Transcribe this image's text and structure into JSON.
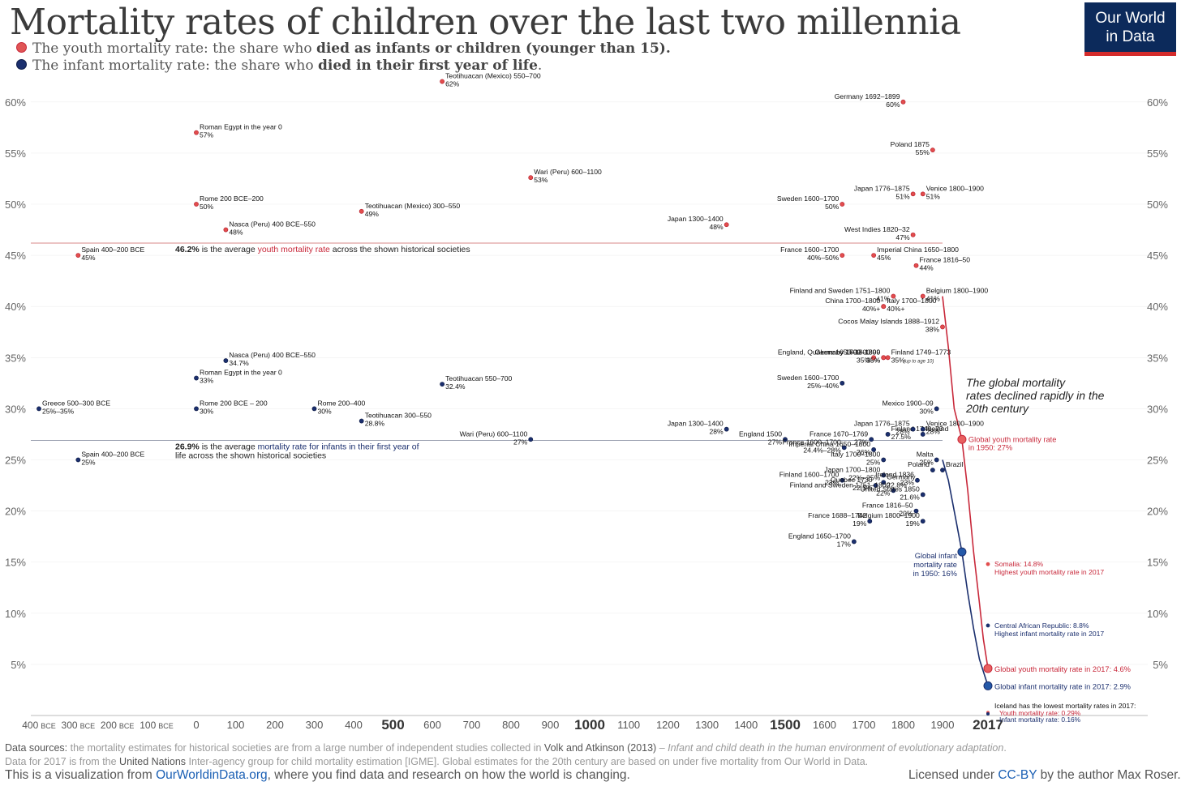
{
  "header": {
    "title": "Mortality rates of children over the last two millennia",
    "youth_legend_pre": "The youth mortality rate: the share who ",
    "youth_legend_bold": "died as infants or children (younger than 15).",
    "infant_legend_pre": "The infant mortality rate: the share who ",
    "infant_legend_bold": "died in their first year of life",
    "infant_legend_post": "."
  },
  "logo": {
    "line1": "Our World",
    "line2": "in Data"
  },
  "colors": {
    "youth": "#c8283a",
    "infant": "#1b2f6e",
    "youth_light": "#e85d5d",
    "infant_mid": "#2459a8",
    "grid": "#dddddd"
  },
  "chart_data": {
    "type": "scatter",
    "y_ticks": [
      "5%",
      "10%",
      "15%",
      "20%",
      "25%",
      "30%",
      "35%",
      "40%",
      "45%",
      "50%",
      "55%",
      "60%"
    ],
    "ylim": [
      0,
      62
    ],
    "x_ticks_bce": [
      {
        "label": "400",
        "suffix": "BCE",
        "x": -400
      },
      {
        "label": "300",
        "suffix": "BCE",
        "x": -300
      },
      {
        "label": "200",
        "suffix": "BCE",
        "x": -200
      },
      {
        "label": "100",
        "suffix": "BCE",
        "x": -100
      }
    ],
    "x_ticks": [
      {
        "label": "0",
        "x": 0,
        "big": false
      },
      {
        "label": "100",
        "x": 100,
        "big": false
      },
      {
        "label": "200",
        "x": 200,
        "big": false
      },
      {
        "label": "300",
        "x": 300,
        "big": false
      },
      {
        "label": "400",
        "x": 400,
        "big": false
      },
      {
        "label": "500",
        "x": 500,
        "big": true
      },
      {
        "label": "600",
        "x": 600,
        "big": false
      },
      {
        "label": "700",
        "x": 700,
        "big": false
      },
      {
        "label": "800",
        "x": 800,
        "big": false
      },
      {
        "label": "900",
        "x": 900,
        "big": false
      },
      {
        "label": "1000",
        "x": 1000,
        "big": true
      },
      {
        "label": "1100",
        "x": 1100,
        "big": false
      },
      {
        "label": "1200",
        "x": 1200,
        "big": false
      },
      {
        "label": "1300",
        "x": 1300,
        "big": false
      },
      {
        "label": "1400",
        "x": 1400,
        "big": false
      },
      {
        "label": "1500",
        "x": 1500,
        "big": true
      },
      {
        "label": "1600",
        "x": 1600,
        "big": false
      },
      {
        "label": "1700",
        "x": 1700,
        "big": false
      },
      {
        "label": "1800",
        "x": 1800,
        "big": false
      },
      {
        "label": "1900",
        "x": 1900,
        "big": false
      },
      {
        "label": "2017",
        "x": 2017,
        "big": true
      }
    ],
    "averages": [
      {
        "series": "youth",
        "value": 46.2,
        "bold": "46.2%",
        "pre": " is the average ",
        "hl": "youth mortality rate",
        "post": " across the shown historical societies",
        "line2": ""
      },
      {
        "series": "infant",
        "value": 26.9,
        "bold": "26.9%",
        "pre": " is the average ",
        "hl": "mortality rate for infants in their first year of",
        "post": "",
        "line2": "life across the shown historical societies"
      }
    ],
    "youth_points": [
      {
        "x": -300,
        "y": 45,
        "label": "Spain 400–200 BCE",
        "value": "45%",
        "side": "right"
      },
      {
        "x": 0,
        "y": 57,
        "label": "Roman Egypt in the year 0",
        "value": "57%",
        "side": "right"
      },
      {
        "x": 0,
        "y": 50,
        "label": "Rome 200 BCE–200",
        "value": "50%",
        "side": "right"
      },
      {
        "x": 75,
        "y": 47.5,
        "label": "Nasca (Peru) 400 BCE–550",
        "value": "48%",
        "side": "right"
      },
      {
        "x": 420,
        "y": 49.3,
        "label": "Teotihuacan (Mexico) 300–550",
        "value": "49%",
        "side": "right"
      },
      {
        "x": 625,
        "y": 62,
        "label": "Teotihuacan (Mexico) 550–700",
        "value": "62%",
        "side": "right"
      },
      {
        "x": 850,
        "y": 52.6,
        "label": "Wari (Peru) 600–1100",
        "value": "53%",
        "side": "right"
      },
      {
        "x": 1350,
        "y": 48,
        "label": "Japan 1300–1400",
        "value": "48%",
        "side": "left"
      },
      {
        "x": 1645,
        "y": 50,
        "label": "Sweden 1600–1700",
        "value": "50%",
        "side": "left"
      },
      {
        "x": 1645,
        "y": 45,
        "label": "France 1600–1700",
        "value": "40%–50%",
        "side": "left"
      },
      {
        "x": 1725,
        "y": 45,
        "label": "Imperial China 1650–1800",
        "value": "45%",
        "side": "right"
      },
      {
        "x": 1800,
        "y": 60,
        "label": "Germany 1692–1899",
        "value": "60%",
        "side": "left"
      },
      {
        "x": 1875,
        "y": 55.3,
        "label": "Poland 1875",
        "value": "55%",
        "side": "left"
      },
      {
        "x": 1825,
        "y": 51,
        "label": "Japan 1776–1875",
        "value": "51%",
        "side": "left"
      },
      {
        "x": 1850,
        "y": 51,
        "label": "Venice 1800–1900",
        "value": "51%",
        "side": "right"
      },
      {
        "x": 1825,
        "y": 47,
        "label": "West Indies 1820–32",
        "value": "47%",
        "side": "left"
      },
      {
        "x": 1833,
        "y": 44,
        "label": "France 1816–50",
        "value": "44%",
        "side": "right"
      },
      {
        "x": 1775,
        "y": 41,
        "label": "Finland and Sweden 1751–1800",
        "value": "41%",
        "side": "left"
      },
      {
        "x": 1850,
        "y": 41,
        "label": "Belgium 1800–1900",
        "value": "41%",
        "side": "right"
      },
      {
        "x": 1750,
        "y": 40,
        "label": "China 1700–1800",
        "value": "40%+",
        "side": "left"
      },
      {
        "x": 1750,
        "y": 40,
        "label": "Italy 1700–1800",
        "value": "40%+",
        "side": "right"
      },
      {
        "x": 1900,
        "y": 38,
        "label": "Cocos Malay Islands 1888–1912",
        "value": "38%",
        "side": "left"
      },
      {
        "x": 1750,
        "y": 35,
        "label": "Germany 1700–1800",
        "value": "35%",
        "side": "left"
      },
      {
        "x": 1725,
        "y": 35,
        "label": "England, Quakers 1650–1800",
        "value": "35%",
        "side": "left"
      },
      {
        "x": 1761,
        "y": 35,
        "label": "Finland 1749–1773",
        "value": "35%",
        "side": "right"
      },
      {
        "x": 1750,
        "y": 35,
        "label": "Germany 1692–1899",
        "value": "35%",
        "side": "left"
      }
    ],
    "infant_points": [
      {
        "x": -400,
        "y": 30,
        "label": "Greece 500–300 BCE",
        "value": "25%–35%",
        "side": "right"
      },
      {
        "x": -300,
        "y": 25,
        "label": "Spain 400–200 BCE",
        "value": "25%",
        "side": "right"
      },
      {
        "x": 0,
        "y": 33,
        "label": "Roman Egypt in the year 0",
        "value": "33%",
        "side": "right"
      },
      {
        "x": 0,
        "y": 30,
        "label": "Rome 200 BCE – 200",
        "value": "30%",
        "side": "right"
      },
      {
        "x": 75,
        "y": 34.7,
        "label": "Nasca (Peru) 400 BCE–550",
        "value": "34.7%",
        "side": "right"
      },
      {
        "x": 300,
        "y": 30,
        "label": "Rome 200–400",
        "value": "30%",
        "side": "right"
      },
      {
        "x": 420,
        "y": 28.8,
        "label": "Teotihuacan 300–550",
        "value": "28.8%",
        "side": "right"
      },
      {
        "x": 625,
        "y": 32.4,
        "label": "Teotihuacan 550–700",
        "value": "32.4%",
        "side": "right"
      },
      {
        "x": 850,
        "y": 27,
        "label": "Wari (Peru) 600–1100",
        "value": "27%",
        "side": "left"
      },
      {
        "x": 1350,
        "y": 28,
        "label": "Japan 1300–1400",
        "value": "28%",
        "side": "left"
      },
      {
        "x": 1500,
        "y": 27,
        "label": "England 1500",
        "value": "27%",
        "side": "left"
      },
      {
        "x": 1645,
        "y": 32.5,
        "label": "Sweden 1600–1700",
        "value": "25%–40%",
        "side": "left"
      },
      {
        "x": 1719,
        "y": 27,
        "label": "France 1670–1769",
        "value": "27%",
        "side": "left"
      },
      {
        "x": 1650,
        "y": 26.2,
        "label": "France 1600–1700",
        "value": "24.4%–28%",
        "side": "left"
      },
      {
        "x": 1761,
        "y": 27.5,
        "label": "Finland 1749–73",
        "value": "27.5%",
        "side": "right"
      },
      {
        "x": 1725,
        "y": 26,
        "label": "Imperial China 1650–1800",
        "value": "26%",
        "side": "left"
      },
      {
        "x": 1850,
        "y": 28,
        "label": "Venice 1800–1900",
        "value": "28%",
        "side": "right"
      },
      {
        "x": 1885,
        "y": 30,
        "label": "Mexico 1900–09",
        "value": "30%",
        "side": "left"
      },
      {
        "x": 1850,
        "y": 27.5,
        "label": "Iceland",
        "value": "",
        "side": "right"
      },
      {
        "x": 1825,
        "y": 28,
        "label": "Japan 1776–1875",
        "value": "28%",
        "side": "left"
      },
      {
        "x": 1750,
        "y": 25,
        "label": "Italy 1700–1800",
        "value": "25%",
        "side": "left"
      },
      {
        "x": 1885,
        "y": 25,
        "label": "Malta",
        "value": "25%",
        "side": "left"
      },
      {
        "x": 1875,
        "y": 24,
        "label": "Poland",
        "value": "",
        "side": "left"
      },
      {
        "x": 1900,
        "y": 24,
        "label": "Brazil",
        "value": "",
        "side": "right"
      },
      {
        "x": 1750,
        "y": 23.5,
        "label": "Japan 1700–1800",
        "value": "22%–25%",
        "side": "left"
      },
      {
        "x": 1836,
        "y": 23,
        "label": "Ireland 1836",
        "value": "23%",
        "side": "left"
      },
      {
        "x": 1645,
        "y": 23,
        "label": "Finland 1600–1700",
        "value": "23%",
        "side": "left"
      },
      {
        "x": 1730,
        "y": 22.5,
        "label": "Quebec 1730",
        "value": "22.5%",
        "side": "left"
      },
      {
        "x": 1750,
        "y": 22.8,
        "label": "Germany",
        "value": "22.8%",
        "side": "right"
      },
      {
        "x": 1775,
        "y": 22,
        "label": "Finland and Sweden 1751–1800",
        "value": "22%",
        "side": "left"
      },
      {
        "x": 1850,
        "y": 21.6,
        "label": "United States 1850",
        "value": "21.6%",
        "side": "left"
      },
      {
        "x": 1833,
        "y": 20,
        "label": "France 1816–50",
        "value": "20%",
        "side": "left"
      },
      {
        "x": 1715,
        "y": 19,
        "label": "France 1688–1742",
        "value": "19%",
        "side": "left"
      },
      {
        "x": 1850,
        "y": 19,
        "label": "Belgium 1800–1900",
        "value": "19%",
        "side": "left"
      },
      {
        "x": 1675,
        "y": 17,
        "label": "England 1650–1700",
        "value": "17%",
        "side": "left"
      }
    ],
    "global_youth_line": [
      [
        1900,
        41
      ],
      [
        1915,
        36
      ],
      [
        1930,
        30
      ],
      [
        1950,
        27
      ],
      [
        1965,
        22
      ],
      [
        1980,
        16
      ],
      [
        1995,
        11
      ],
      [
        2005,
        7.5
      ],
      [
        2017,
        4.6
      ]
    ],
    "global_infant_line": [
      [
        1900,
        25
      ],
      [
        1915,
        23
      ],
      [
        1935,
        19
      ],
      [
        1950,
        16
      ],
      [
        1965,
        12
      ],
      [
        1980,
        8.5
      ],
      [
        1995,
        5.5
      ],
      [
        2017,
        2.9
      ]
    ],
    "global_markers": [
      {
        "series": "youth",
        "x": 1950,
        "y": 27,
        "lines": [
          "Global youth mortality rate",
          "in 1950: 27%"
        ]
      },
      {
        "series": "infant",
        "x": 1950,
        "y": 16,
        "lines": [
          "Global infant",
          "mortality rate",
          "in 1950: 16%"
        ]
      },
      {
        "series": "youth",
        "x": 2017,
        "y": 4.6,
        "lines": [
          "Global youth mortality rate in 2017: 4.6%"
        ]
      },
      {
        "series": "infant",
        "x": 2017,
        "y": 2.9,
        "lines": [
          "Global infant mortality rate in 2017: 2.9%"
        ]
      }
    ],
    "extremes_2017": [
      {
        "series": "youth",
        "y": 14.8,
        "lines": [
          "Somalia: 14.8%",
          "Highest youth mortality rate in 2017"
        ]
      },
      {
        "series": "infant",
        "y": 8.8,
        "lines": [
          "Central African Republic: 8.8%",
          "Highest infant mortality rate in 2017"
        ]
      }
    ],
    "iceland_2017": {
      "youth": 0.29,
      "infant": 0.16,
      "heading": "Iceland has the lowest mortality rates in 2017:",
      "youth_label": "Youth mortality rate: 0.29%",
      "infant_label": "Infant mortality rate: 0.16%"
    },
    "annotation": [
      "The global mortality",
      "rates declined rapidly in the",
      "20th century"
    ],
    "finland_note": "(up to age 10)"
  },
  "footer": {
    "src_label": "Data sources:",
    "src_text": " the mortality estimates for historical societies are from a large number of independent studies collected in ",
    "src_ref": "Volk and Atkinson (2013)",
    "src_dash": " – ",
    "src_title": "Infant and child death in the human environment of evolutionary adaptation",
    "src_end": ".",
    "line2_a": "Data for 2017 is from the ",
    "line2_un": "United Nations",
    "line2_b": " Inter-agency group for child mortality estimation [IGME]. Global estimates for the 20th century are based on under five mortality from Our World in Data.",
    "line3_a": "This is a visualization from ",
    "line3_link": "OurWorldinData.org",
    "line3_b": ", where you find data and research on how the world is changing.",
    "license_a": "Licensed under ",
    "license_link": "CC-BY",
    "license_b": " by the author Max Roser."
  }
}
